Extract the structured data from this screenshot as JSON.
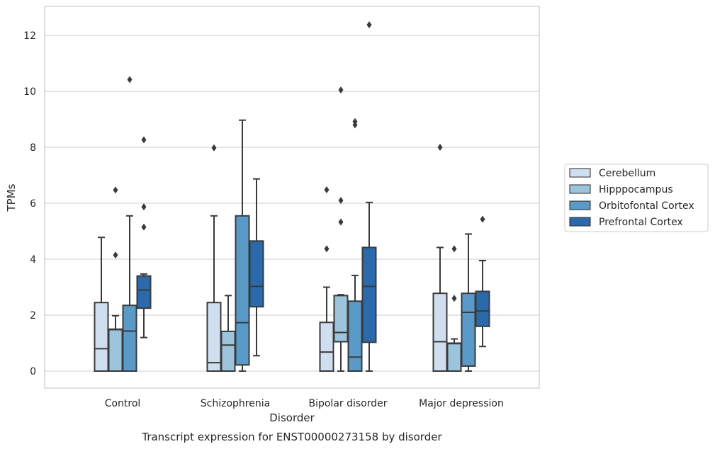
{
  "chart_data": {
    "type": "boxplot",
    "caption": "Transcript expression for ENST00000273158 by disorder",
    "xlabel": "Disorder",
    "ylabel": "TPMs",
    "ylim": [
      -0.6,
      13.0
    ],
    "yticks": [
      0,
      2,
      4,
      6,
      8,
      10,
      12
    ],
    "grid": "horizontal",
    "legend_position": "right",
    "categories": [
      "Control",
      "Schizophrenia",
      "Bipolar disorder",
      "Major depression"
    ],
    "series": [
      {
        "name": "Cerebellum",
        "color": "#d0dff0",
        "boxes": [
          {
            "whislo": 0,
            "q1": 0,
            "med": 0.8,
            "q3": 2.45,
            "whishi": 4.78,
            "fliers": []
          },
          {
            "whislo": 0,
            "q1": 0,
            "med": 0.3,
            "q3": 2.45,
            "whishi": 5.55,
            "fliers": [
              7.98
            ]
          },
          {
            "whislo": 0,
            "q1": 0,
            "med": 0.68,
            "q3": 1.74,
            "whishi": 3.0,
            "fliers": [
              4.37,
              6.48
            ]
          },
          {
            "whislo": 0,
            "q1": 0,
            "med": 1.05,
            "q3": 2.78,
            "whishi": 4.42,
            "fliers": [
              8.0
            ]
          }
        ]
      },
      {
        "name": "Hipppocampus",
        "color": "#9cc4dc",
        "boxes": [
          {
            "whislo": 0,
            "q1": 0,
            "med": 1.48,
            "q3": 1.5,
            "whishi": 1.98,
            "fliers": [
              4.15,
              6.47
            ]
          },
          {
            "whislo": 0,
            "q1": 0,
            "med": 0.93,
            "q3": 1.42,
            "whishi": 2.7,
            "fliers": []
          },
          {
            "whislo": 0,
            "q1": 1.05,
            "med": 1.38,
            "q3": 2.7,
            "whishi": 2.73,
            "fliers": [
              5.33,
              6.1,
              10.05
            ]
          },
          {
            "whislo": 0,
            "q1": 0,
            "med": 0.98,
            "q3": 1.0,
            "whishi": 1.15,
            "fliers": [
              2.6,
              4.37
            ]
          }
        ]
      },
      {
        "name": "Orbitofontal Cortex",
        "color": "#5a9ac8",
        "boxes": [
          {
            "whislo": 0,
            "q1": 0,
            "med": 1.43,
            "q3": 2.35,
            "whishi": 5.55,
            "fliers": [
              10.42
            ]
          },
          {
            "whislo": 0,
            "q1": 0.22,
            "med": 1.73,
            "q3": 5.55,
            "whishi": 8.97,
            "fliers": []
          },
          {
            "whislo": 0,
            "q1": 0,
            "med": 0.5,
            "q3": 2.5,
            "whishi": 3.42,
            "fliers": [
              8.8,
              8.92
            ]
          },
          {
            "whislo": 0,
            "q1": 0.18,
            "med": 2.1,
            "q3": 2.78,
            "whishi": 4.9,
            "fliers": []
          }
        ]
      },
      {
        "name": "Prefrontal Cortex",
        "color": "#2a6aaa",
        "boxes": [
          {
            "whislo": 1.2,
            "q1": 2.25,
            "med": 2.9,
            "q3": 3.4,
            "whishi": 3.47,
            "fliers": [
              5.15,
              5.87,
              8.27
            ]
          },
          {
            "whislo": 0.55,
            "q1": 2.3,
            "med": 3.03,
            "q3": 4.65,
            "whishi": 6.87,
            "fliers": []
          },
          {
            "whislo": 0,
            "q1": 1.03,
            "med": 3.03,
            "q3": 4.42,
            "whishi": 6.03,
            "fliers": [
              12.38
            ]
          },
          {
            "whislo": 0.88,
            "q1": 1.6,
            "med": 2.15,
            "q3": 2.85,
            "whishi": 3.95,
            "fliers": [
              5.43
            ]
          }
        ]
      }
    ]
  }
}
